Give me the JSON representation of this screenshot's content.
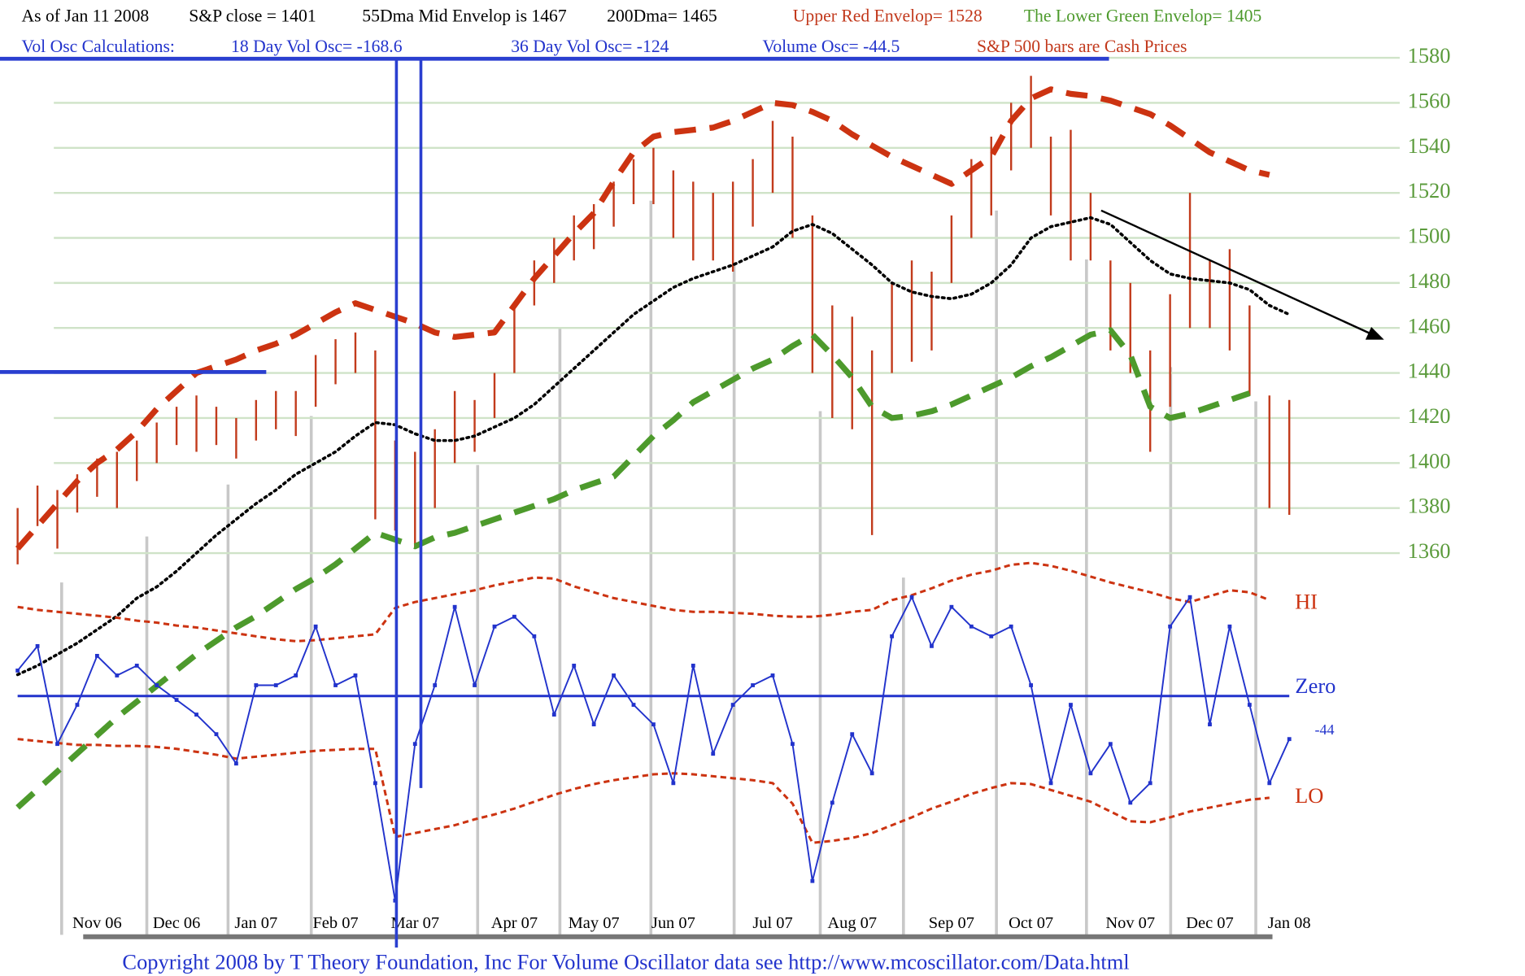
{
  "header": {
    "line1": [
      "As of Jan 11  2008",
      "S&P close = 1401",
      "55Dma Mid Envelop is  1467",
      "200Dma=  1465",
      "Upper Red Envelop= 1528",
      "The Lower Green Envelop=  1405"
    ],
    "line2": [
      "Vol Osc Calculations:",
      "18 Day Vol Osc= -168.6",
      "36 Day Vol Osc= -124",
      "Volume Osc= -44.5",
      "S&P 500 bars are Cash Prices"
    ]
  },
  "footer": "Copyright 2008 by T Theory Foundation, Inc  For Volume Oscillator data see http://www.mcoscillator.com/Data.html",
  "chart_data": {
    "type": "hilo",
    "categories": [
      null,
      null,
      null,
      null,
      "Nov 06",
      null,
      null,
      null,
      "Dec 06",
      null,
      null,
      null,
      "Jan 07",
      null,
      null,
      null,
      "Feb 07",
      null,
      null,
      null,
      "Mar 07",
      null,
      null,
      null,
      null,
      "Apr 07",
      null,
      null,
      null,
      "May 07",
      null,
      null,
      null,
      "Jun 07",
      null,
      null,
      null,
      null,
      "Jul 07",
      null,
      null,
      null,
      "Aug 07",
      null,
      null,
      null,
      null,
      "Sep 07",
      null,
      null,
      null,
      "Oct 07",
      null,
      null,
      null,
      null,
      "Nov 07",
      null,
      null,
      null,
      "Dec 07",
      null,
      null,
      null,
      "Jan 08"
    ],
    "ylim": [
      1245,
      1590
    ],
    "yticks": [
      1360,
      1380,
      1400,
      1420,
      1440,
      1460,
      1480,
      1500,
      1520,
      1540,
      1560,
      1580
    ],
    "grid": true,
    "bars": {
      "color": "#c23b1c",
      "high": [
        1380,
        1390,
        1388,
        1395,
        1402,
        1405,
        1410,
        1418,
        1425,
        1430,
        1425,
        1420,
        1428,
        1432,
        1432,
        1448,
        1455,
        1458,
        1450,
        1410,
        1405,
        1415,
        1432,
        1428,
        1440,
        1470,
        1490,
        1500,
        1510,
        1515,
        1525,
        1535,
        1540,
        1530,
        1525,
        1520,
        1525,
        1535,
        1552,
        1545,
        1510,
        1470,
        1465,
        1450,
        1480,
        1490,
        1485,
        1510,
        1535,
        1545,
        1560,
        1572,
        1545,
        1548,
        1520,
        1490,
        1480,
        1450,
        1475,
        1520,
        1490,
        1495,
        1470,
        1430,
        1428
      ],
      "low": [
        1355,
        1372,
        1362,
        1378,
        1385,
        1380,
        1392,
        1400,
        1408,
        1405,
        1408,
        1402,
        1410,
        1415,
        1412,
        1425,
        1435,
        1440,
        1375,
        1370,
        1362,
        1380,
        1400,
        1405,
        1420,
        1440,
        1470,
        1480,
        1490,
        1495,
        1505,
        1515,
        1515,
        1500,
        1490,
        1490,
        1485,
        1505,
        1520,
        1500,
        1440,
        1420,
        1415,
        1368,
        1440,
        1445,
        1450,
        1480,
        1500,
        1510,
        1530,
        1540,
        1510,
        1490,
        1490,
        1450,
        1440,
        1405,
        1425,
        1460,
        1460,
        1450,
        1430,
        1380,
        1377
      ]
    },
    "overlays": [
      {
        "color": "#000000",
        "dash": "dot",
        "values": [
          1306,
          1310,
          1315,
          1320,
          1326,
          1332,
          1340,
          1345,
          1352,
          1360,
          1368,
          1375,
          1382,
          1388,
          1395,
          1400,
          1405,
          1412,
          1418,
          1417,
          1413,
          1410,
          1410,
          1412,
          1416,
          1420,
          1426,
          1434,
          1442,
          1450,
          1458,
          1466,
          1472,
          1478,
          1482,
          1485,
          1488,
          1492,
          1496,
          1503,
          1506,
          1502,
          1495,
          1488,
          1480,
          1476,
          1474,
          1473,
          1475,
          1480,
          1488,
          1500,
          1505,
          1507,
          1509,
          1506,
          1498,
          1490,
          1484,
          1482,
          1481,
          1480,
          1477,
          1470,
          1466
        ]
      },
      {
        "color": "#cc3311",
        "dash": "long",
        "values": [
          1362,
          1372,
          1382,
          1392,
          1400,
          1406,
          1414,
          1424,
          1432,
          1440,
          1443,
          1446,
          1450,
          1453,
          1457,
          1462,
          1467,
          1471,
          1468,
          1465,
          1462,
          1458,
          1456,
          1457,
          1458,
          1470,
          1482,
          1492,
          1502,
          1511,
          1525,
          1538,
          1545,
          1547,
          1548,
          1549,
          1552,
          1556,
          1560,
          1559,
          1556,
          1552,
          1546,
          1541,
          1536,
          1532,
          1528,
          1524,
          1530,
          1536,
          1552,
          1562,
          1566,
          1564,
          1563,
          1561,
          1558,
          1555,
          1550,
          1544,
          1538,
          1534,
          1530,
          1528,
          null
        ]
      },
      {
        "color": "#4d9a2c",
        "dash": "long",
        "values": [
          1247,
          1255,
          1263,
          1271,
          1279,
          1287,
          1294,
          1301,
          1308,
          1315,
          1321,
          1327,
          1332,
          1338,
          1344,
          1349,
          1355,
          1362,
          1369,
          1366,
          1363,
          1367,
          1369,
          1372,
          1375,
          1378,
          1381,
          1384,
          1388,
          1391,
          1394,
          1403,
          1412,
          1419,
          1427,
          1432,
          1437,
          1442,
          1446,
          1452,
          1457,
          1448,
          1438,
          1425,
          1420,
          1421,
          1423,
          1426,
          1430,
          1434,
          1438,
          1443,
          1447,
          1452,
          1457,
          1459,
          1448,
          1425,
          1420,
          1422,
          1425,
          1428,
          1431,
          null,
          null
        ]
      }
    ],
    "oscillator": {
      "type": "line",
      "ylim": [
        -230,
        140
      ],
      "zero_line": {
        "name": "Zero",
        "value": 0,
        "color": "#2233cc"
      },
      "series": [
        {
          "name": "HI",
          "color": "#cc3311",
          "dash": "short",
          "values": [
            91,
            88,
            86,
            84,
            82,
            80,
            77,
            75,
            72,
            70,
            67,
            64,
            61,
            58,
            56,
            57,
            59,
            61,
            63,
            90,
            96,
            100,
            104,
            108,
            113,
            117,
            121,
            120,
            112,
            106,
            100,
            96,
            92,
            88,
            86,
            86,
            85,
            84,
            82,
            81,
            81,
            83,
            86,
            88,
            98,
            103,
            110,
            118,
            124,
            128,
            134,
            136,
            133,
            128,
            122,
            116,
            111,
            106,
            100,
            96,
            102,
            108,
            106,
            98,
            null
          ]
        },
        {
          "name": "LO",
          "color": "#cc3311",
          "dash": "short",
          "values": [
            -44,
            -46,
            -48,
            -50,
            -50,
            -51,
            -51,
            -52,
            -54,
            -57,
            -60,
            -64,
            -62,
            -60,
            -58,
            -56,
            -55,
            -54,
            -54,
            -144,
            -140,
            -136,
            -132,
            -126,
            -121,
            -115,
            -108,
            -101,
            -95,
            -90,
            -86,
            -83,
            -80,
            -79,
            -80,
            -82,
            -84,
            -86,
            -89,
            -110,
            -150,
            -148,
            -145,
            -140,
            -132,
            -124,
            -115,
            -108,
            -100,
            -94,
            -89,
            -90,
            -96,
            -102,
            -108,
            -118,
            -128,
            -129,
            -124,
            -118,
            -114,
            -110,
            -106,
            -104,
            null
          ]
        },
        {
          "color": "#2233cc",
          "dash": "solid",
          "values": [
            26,
            51,
            -49,
            -9,
            41,
            21,
            31,
            11,
            -4,
            -19,
            -39,
            -69,
            11,
            11,
            21,
            71,
            11,
            21,
            -89,
            -209,
            -49,
            11,
            91,
            11,
            71,
            81,
            61,
            -19,
            31,
            -29,
            21,
            -9,
            -29,
            -89,
            31,
            -59,
            -9,
            11,
            21,
            -49,
            -189,
            -109,
            -39,
            -79,
            61,
            101,
            51,
            91,
            71,
            61,
            71,
            11,
            -89,
            -9,
            -79,
            -49,
            -109,
            -89,
            71,
            101,
            -29,
            71,
            -9,
            -89,
            -44
          ],
          "value_labels": [
            null,
            null,
            null,
            null,
            null,
            null,
            null,
            null,
            null,
            null,
            null,
            null,
            null,
            null,
            null,
            null,
            null,
            null,
            null,
            null,
            null,
            null,
            null,
            null,
            null,
            null,
            null,
            null,
            null,
            null,
            null,
            null,
            null,
            null,
            null,
            null,
            null,
            null,
            null,
            null,
            null,
            null,
            null,
            null,
            null,
            null,
            null,
            null,
            null,
            null,
            null,
            null,
            null,
            null,
            null,
            null,
            null,
            null,
            null,
            null,
            null,
            null,
            null,
            null,
            "-44"
          ]
        }
      ]
    }
  }
}
